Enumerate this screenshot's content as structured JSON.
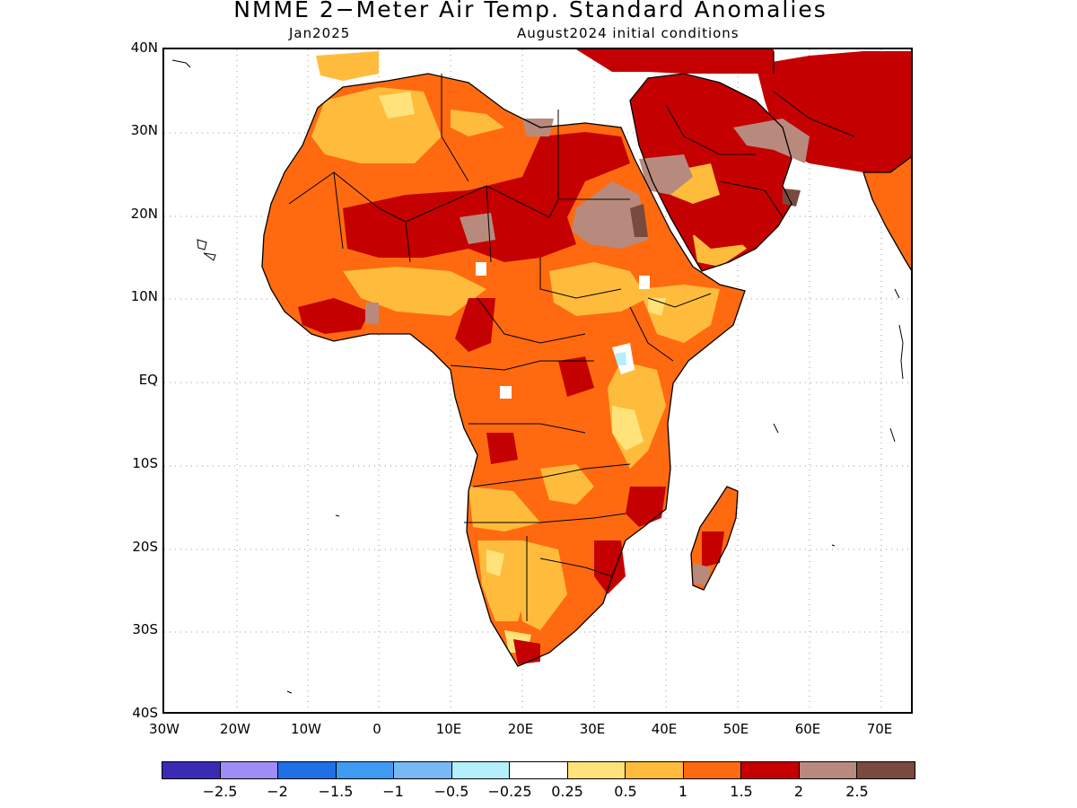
{
  "title": "NMME 2−Meter Air Temp. Standard Anomalies",
  "subtitle_left": "Jan2025",
  "subtitle_right": "August2024 initial conditions",
  "axes": {
    "lat_labels": [
      "40N",
      "30N",
      "20N",
      "10N",
      "EQ",
      "10S",
      "20S",
      "30S",
      "40S"
    ],
    "lon_labels": [
      "30W",
      "20W",
      "10W",
      "0",
      "10E",
      "20E",
      "30E",
      "40E",
      "50E",
      "60E",
      "70E"
    ],
    "lat_range": [
      -40,
      40
    ],
    "lon_range": [
      -30,
      75
    ],
    "grid": "dotted"
  },
  "legend": {
    "colors": [
      "#3a2bb5",
      "#a08cf5",
      "#1f6fe6",
      "#3f9bf2",
      "#78b8f5",
      "#b3f0fb",
      "#ffffff",
      "#ffe27a",
      "#ffbc3c",
      "#ff6a10",
      "#c40000",
      "#b88a7e",
      "#7a4a3e"
    ],
    "labels": [
      "−2.5",
      "−2",
      "−1.5",
      "−1",
      "−0.5",
      "−0.25",
      "0.25",
      "0.5",
      "1",
      "1.5",
      "2",
      "2.5"
    ]
  }
}
